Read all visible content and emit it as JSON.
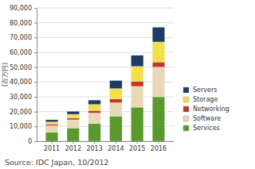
{
  "chart_data": {
    "type": "bar",
    "stacked": true,
    "grid": true,
    "y_label": "(百万円)",
    "annotations": [
      "Source: IDC Japan, 10/2012"
    ],
    "categories": [
      "2011",
      "2012",
      "2013",
      "2014",
      "2015",
      "2016"
    ],
    "series": [
      {
        "name": "Servers",
        "color": "#1f3b63",
        "values": [
          1500,
          2000,
          3000,
          5500,
          7500,
          10000
        ]
      },
      {
        "name": "Storage",
        "color": "#f2df4a",
        "values": [
          1500,
          2500,
          4000,
          7000,
          10000,
          13500
        ]
      },
      {
        "name": "Networking",
        "color": "#c0392b",
        "values": [
          1000,
          1200,
          1800,
          2500,
          3500,
          3500
        ]
      },
      {
        "name": "Software",
        "color": "#e8d8b8",
        "values": [
          4500,
          5500,
          7000,
          9000,
          14000,
          20000
        ]
      },
      {
        "name": "Services",
        "color": "#5a9a2c",
        "values": [
          6000,
          9000,
          12000,
          17000,
          23000,
          30000
        ]
      }
    ],
    "ylim": [
      0,
      90000
    ],
    "yticks": [
      0,
      {
        "value": 10000,
        "label": "10,000"
      },
      {
        "value": 20000,
        "label": "20,000"
      },
      {
        "value": 30000,
        "label": "30,000"
      },
      {
        "value": 40000,
        "label": "40,000"
      },
      {
        "value": 50000,
        "label": "50,000"
      },
      {
        "value": 60000,
        "label": "60,000"
      },
      {
        "value": 70000,
        "label": "70,000"
      },
      {
        "value": 80000,
        "label": "80,000"
      },
      {
        "value": 90000,
        "label": "90,000"
      }
    ],
    "legend": "right"
  }
}
